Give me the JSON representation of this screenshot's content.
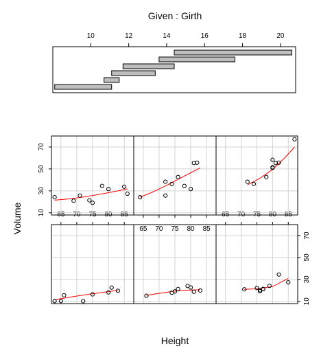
{
  "chart_data": {
    "type": "scatter",
    "title": "Given : Girth",
    "xlabel": "Height",
    "ylabel": "Volume",
    "given": {
      "variable": "Girth",
      "xlim": [
        8.0,
        20.8
      ],
      "ticks": [
        10,
        12,
        14,
        16,
        18,
        20
      ],
      "intervals": [
        [
          8.1,
          11.1
        ],
        [
          10.7,
          11.5
        ],
        [
          11.1,
          13.4
        ],
        [
          11.7,
          14.4
        ],
        [
          13.6,
          17.6
        ],
        [
          14.4,
          20.6
        ]
      ]
    },
    "xlim": [
      62,
      88
    ],
    "ylim": [
      8,
      80
    ],
    "x_ticks": [
      65,
      70,
      75,
      80,
      85
    ],
    "y_ticks": [
      10,
      30,
      50,
      70
    ],
    "panels": [
      {
        "given_interval": 0,
        "x": [
          63,
          65,
          66,
          72,
          75,
          80,
          81,
          83
        ],
        "y": [
          10.3,
          10.3,
          15.6,
          10.2,
          16.4,
          18.2,
          22.6,
          19.7
        ],
        "curve_x": [
          63,
          65,
          70,
          75,
          80,
          83
        ],
        "curve_y": [
          11.5,
          12.6,
          14.9,
          17.0,
          18.9,
          20.0
        ]
      },
      {
        "given_interval": 1,
        "x": [
          66,
          74,
          75,
          76,
          79,
          80,
          81,
          83
        ],
        "y": [
          15.1,
          17.9,
          19.1,
          21.3,
          24.1,
          22.7,
          18.8,
          19.9
        ],
        "curve_x": [
          66,
          70,
          74,
          78,
          83
        ],
        "curve_y": [
          15.6,
          17.3,
          19.0,
          20.2,
          20.6
        ]
      },
      {
        "given_interval": 2,
        "x": [
          71,
          75,
          76,
          76,
          77,
          77,
          79,
          82,
          85
        ],
        "y": [
          21.0,
          22.2,
          19.3,
          20.2,
          21.2,
          21.4,
          24.2,
          34.5,
          27.4
        ],
        "curve_x": [
          71,
          75,
          80,
          85
        ],
        "curve_y": [
          21.0,
          21.5,
          23.5,
          31.0
        ]
      },
      {
        "given_interval": 3,
        "x": [
          63,
          69,
          71,
          74,
          75,
          78,
          80,
          85,
          86
        ],
        "y": [
          24.2,
          21.0,
          25.7,
          21.4,
          19.1,
          34.5,
          31.7,
          33.8,
          27.4
        ],
        "curve_x": [
          63,
          68,
          73,
          78,
          83,
          86
        ],
        "curve_y": [
          21.5,
          22.8,
          24.8,
          27.2,
          30.0,
          31.8
        ]
      },
      {
        "given_interval": 4,
        "x": [
          64,
          72,
          72,
          74,
          76,
          78,
          80,
          81,
          82
        ],
        "y": [
          24.2,
          25.7,
          38.3,
          36.3,
          42.6,
          34.5,
          31.7,
          55.4,
          55.7
        ],
        "curve_x": [
          64,
          68,
          72,
          76,
          80,
          83
        ],
        "curve_y": [
          24.2,
          29.0,
          34.5,
          40.5,
          46.5,
          51.0
        ]
      },
      {
        "given_interval": 5,
        "x": [
          72,
          74,
          78,
          80,
          80,
          80,
          81,
          82,
          87
        ],
        "y": [
          38.3,
          36.3,
          42.6,
          51.0,
          51.5,
          58.3,
          55.4,
          55.7,
          77.0
        ],
        "curve_x": [
          72,
          76,
          80,
          84,
          87
        ],
        "curve_y": [
          35.5,
          41.5,
          49.5,
          60.5,
          70.0
        ]
      }
    ]
  }
}
